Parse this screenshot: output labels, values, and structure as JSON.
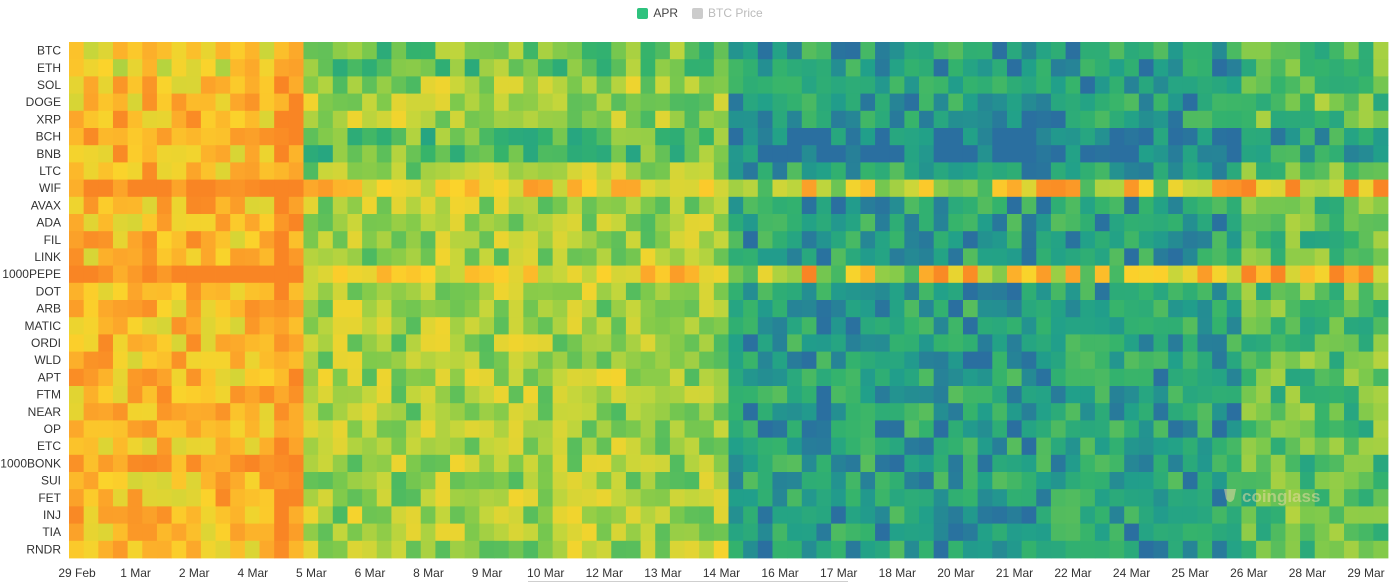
{
  "legend": {
    "apr": {
      "label": "APR",
      "color": "#2ec27e"
    },
    "btc": {
      "label": "BTC Price",
      "color": "#cccccc"
    }
  },
  "watermark": "coinglass",
  "chart_data": {
    "type": "heatmap",
    "title": "",
    "xlabel": "",
    "ylabel": "",
    "legend_position": "top-center",
    "series": [
      {
        "name": "APR"
      },
      {
        "name": "BTC Price"
      }
    ],
    "rows": [
      "BTC",
      "ETH",
      "SOL",
      "DOGE",
      "XRP",
      "BCH",
      "BNB",
      "LTC",
      "WIF",
      "AVAX",
      "ADA",
      "FIL",
      "LINK",
      "1000PEPE",
      "DOT",
      "ARB",
      "MATIC",
      "ORDI",
      "WLD",
      "APT",
      "FTM",
      "NEAR",
      "OP",
      "ETC",
      "1000BONK",
      "SUI",
      "FET",
      "INJ",
      "TIA",
      "RNDR"
    ],
    "x_ticks": [
      "29 Feb",
      "1 Mar",
      "2 Mar",
      "4 Mar",
      "5 Mar",
      "6 Mar",
      "8 Mar",
      "9 Mar",
      "10 Mar",
      "12 Mar",
      "13 Mar",
      "14 Mar",
      "16 Mar",
      "17 Mar",
      "18 Mar",
      "20 Mar",
      "21 Mar",
      "22 Mar",
      "24 Mar",
      "25 Mar",
      "26 Mar",
      "28 Mar",
      "29 Mar"
    ],
    "n_columns": 90,
    "color_scale": [
      "#2a6fa0",
      "#21a08a",
      "#34b36c",
      "#7dc94c",
      "#c4d63b",
      "#fbd32b",
      "#fca82a",
      "#f98524"
    ],
    "value_range": [
      0,
      100
    ],
    "column_periods": [
      {
        "from_col": 0,
        "to_col": 15,
        "level": "high (orange/yellow)"
      },
      {
        "from_col": 16,
        "to_col": 44,
        "level": "mixed (green/yellow/orange)"
      },
      {
        "from_col": 45,
        "to_col": 89,
        "level": "low (teal/green)"
      }
    ],
    "hot_rows_late": [
      "WIF",
      "1000PEPE"
    ]
  }
}
